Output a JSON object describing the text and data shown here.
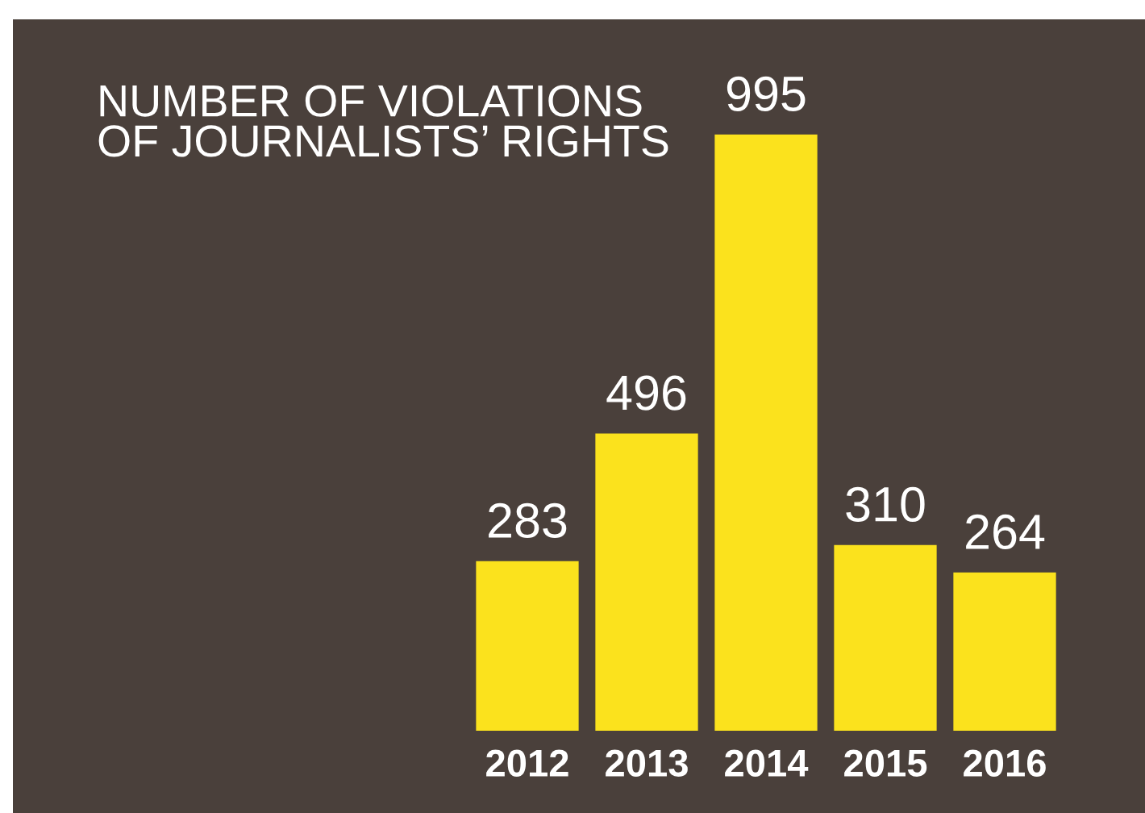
{
  "chart_data": {
    "type": "bar",
    "title": "NUMBER OF VIOLATIONS\nOF JOURNALISTS’ RIGHTS",
    "categories": [
      "2012",
      "2013",
      "2014",
      "2015",
      "2016"
    ],
    "values": [
      283,
      496,
      995,
      310,
      264
    ],
    "color": "#fbe21d",
    "data_labels": true,
    "grid": false
  }
}
